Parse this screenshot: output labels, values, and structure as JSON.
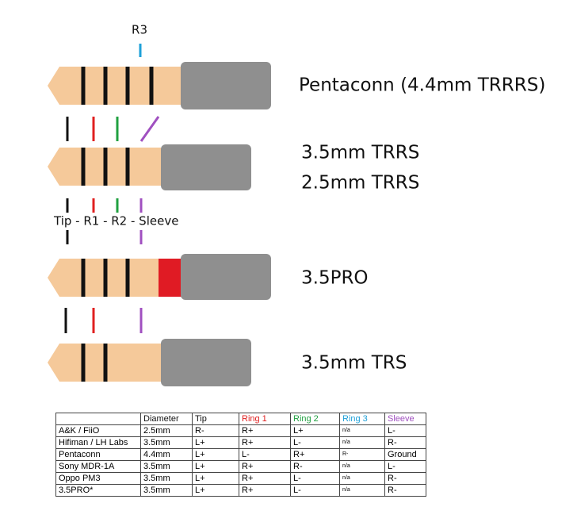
{
  "top_label": "R3",
  "plugs": [
    {
      "label": "Pentaconn (4.4mm TRRRS)"
    },
    {
      "label": "3.5mm TRRS",
      "label2": "2.5mm TRRS"
    },
    {
      "label": "3.5PRO"
    },
    {
      "label": "3.5mm TRS"
    }
  ],
  "pin_label": "Tip - R1 - R2 - Sleeve",
  "table": {
    "header": [
      "Diameter",
      "Tip",
      "Ring 1",
      "Ring 2",
      "Ring 3",
      "Sleeve"
    ],
    "rows": [
      [
        "A&K / FiiO",
        "2.5mm",
        "R-",
        "R+",
        "L+",
        "n/a",
        "L-"
      ],
      [
        "Hifiman / LH Labs",
        "3.5mm",
        "L+",
        "R+",
        "L-",
        "n/a",
        "R-"
      ],
      [
        "Pentaconn",
        "4.4mm",
        "L+",
        "L-",
        "R+",
        "R-",
        "Ground"
      ],
      [
        "Sony MDR-1A",
        "3.5mm",
        "L+",
        "R+",
        "R-",
        "n/a",
        "L-"
      ],
      [
        "Oppo PM3",
        "3.5mm",
        "L+",
        "R+",
        "L-",
        "n/a",
        "R-"
      ],
      [
        "3.5PRO*",
        "3.5mm",
        "L+",
        "R+",
        "L-",
        "n/a",
        "R-"
      ]
    ]
  }
}
